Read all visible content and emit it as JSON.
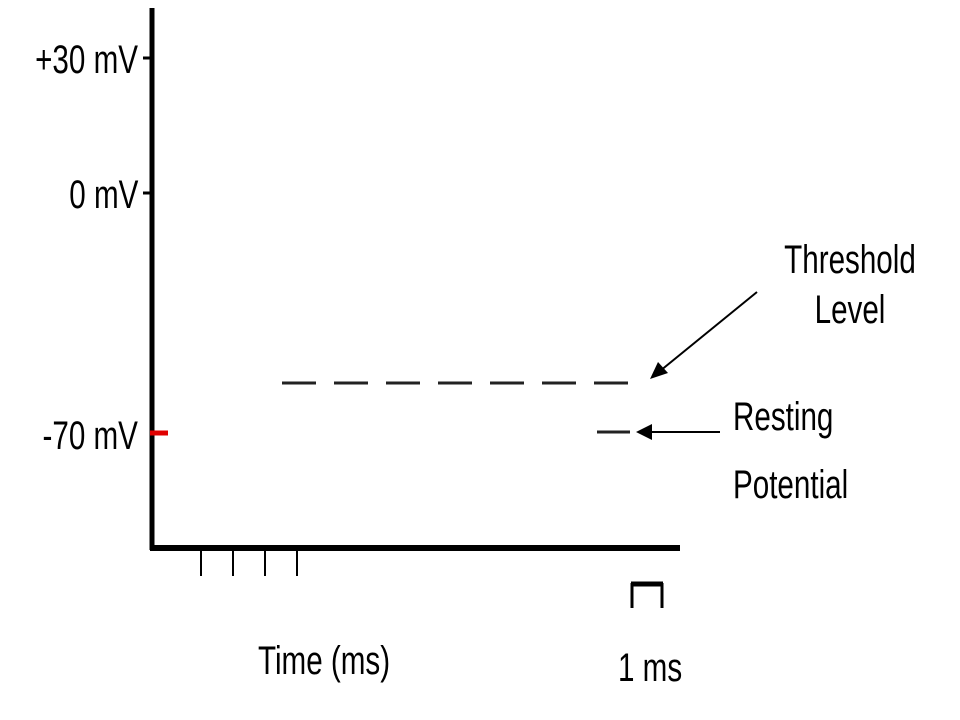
{
  "y_axis": {
    "ticks": [
      {
        "label": "+30 mV",
        "value": 30
      },
      {
        "label": "0 mV",
        "value": 0
      },
      {
        "label": "-70 mV",
        "value": -70
      }
    ],
    "resting_marker_color": "#e00000"
  },
  "x_axis": {
    "label": "Time (ms)",
    "minor_tick_count": 4
  },
  "scale_bar": {
    "label": "1 ms"
  },
  "annotations": {
    "threshold_line1": "Threshold",
    "threshold_line2": "Level",
    "resting_line1": "Resting",
    "resting_line2": "Potential"
  },
  "colors": {
    "ink": "#000000",
    "background": "#ffffff",
    "dash": "#222222"
  }
}
